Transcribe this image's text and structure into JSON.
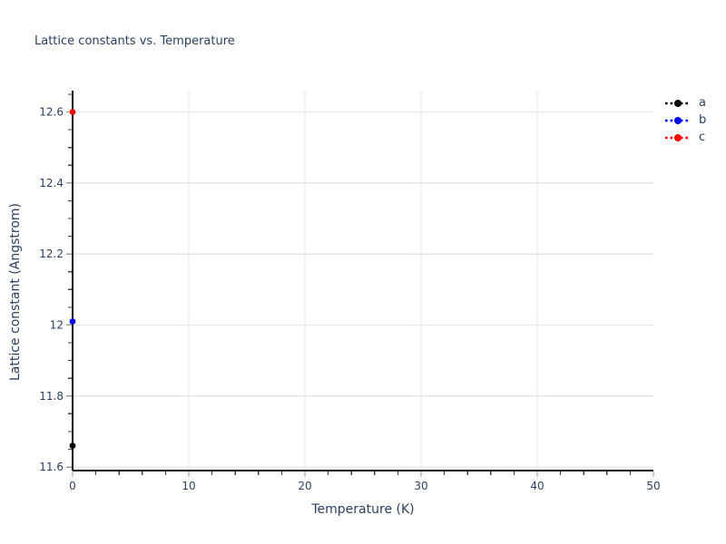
{
  "chart_data": {
    "type": "scatter",
    "title": "Lattice constants vs. Temperature",
    "xlabel": "Temperature (K)",
    "ylabel": "Lattice constant (Angstrom)",
    "xlim": [
      0,
      50
    ],
    "ylim": [
      11.59,
      12.66
    ],
    "grid": true,
    "legend_position": "top-right-outside",
    "x_major_ticks": [
      0,
      10,
      20,
      30,
      40,
      50
    ],
    "x_tick_labels": [
      "0",
      "10",
      "20",
      "30",
      "40",
      "50"
    ],
    "x_minor_step": 2,
    "x_gridlines": [
      10,
      20,
      30,
      40
    ],
    "y_major_ticks": [
      11.6,
      11.8,
      12.0,
      12.2,
      12.4,
      12.6
    ],
    "y_tick_labels": [
      "11.6",
      "11.8",
      "12",
      "12.2",
      "12.4",
      "12.6"
    ],
    "y_minor_step": 0.05,
    "marker": "circle",
    "line_style": "dashed",
    "series": [
      {
        "name": "a",
        "color": "#000000",
        "x": [
          0
        ],
        "y": [
          11.66
        ]
      },
      {
        "name": "b",
        "color": "#0000ff",
        "x": [
          0
        ],
        "y": [
          12.01
        ]
      },
      {
        "name": "c",
        "color": "#ff0000",
        "x": [
          0
        ],
        "y": [
          12.6
        ]
      }
    ],
    "colors": {
      "text": "#2a3f5f",
      "grid": "#e5e5e5",
      "axis_line": "#111111",
      "tick_major": "#999999",
      "tick_minor": "#444444",
      "background": "#ffffff"
    }
  }
}
